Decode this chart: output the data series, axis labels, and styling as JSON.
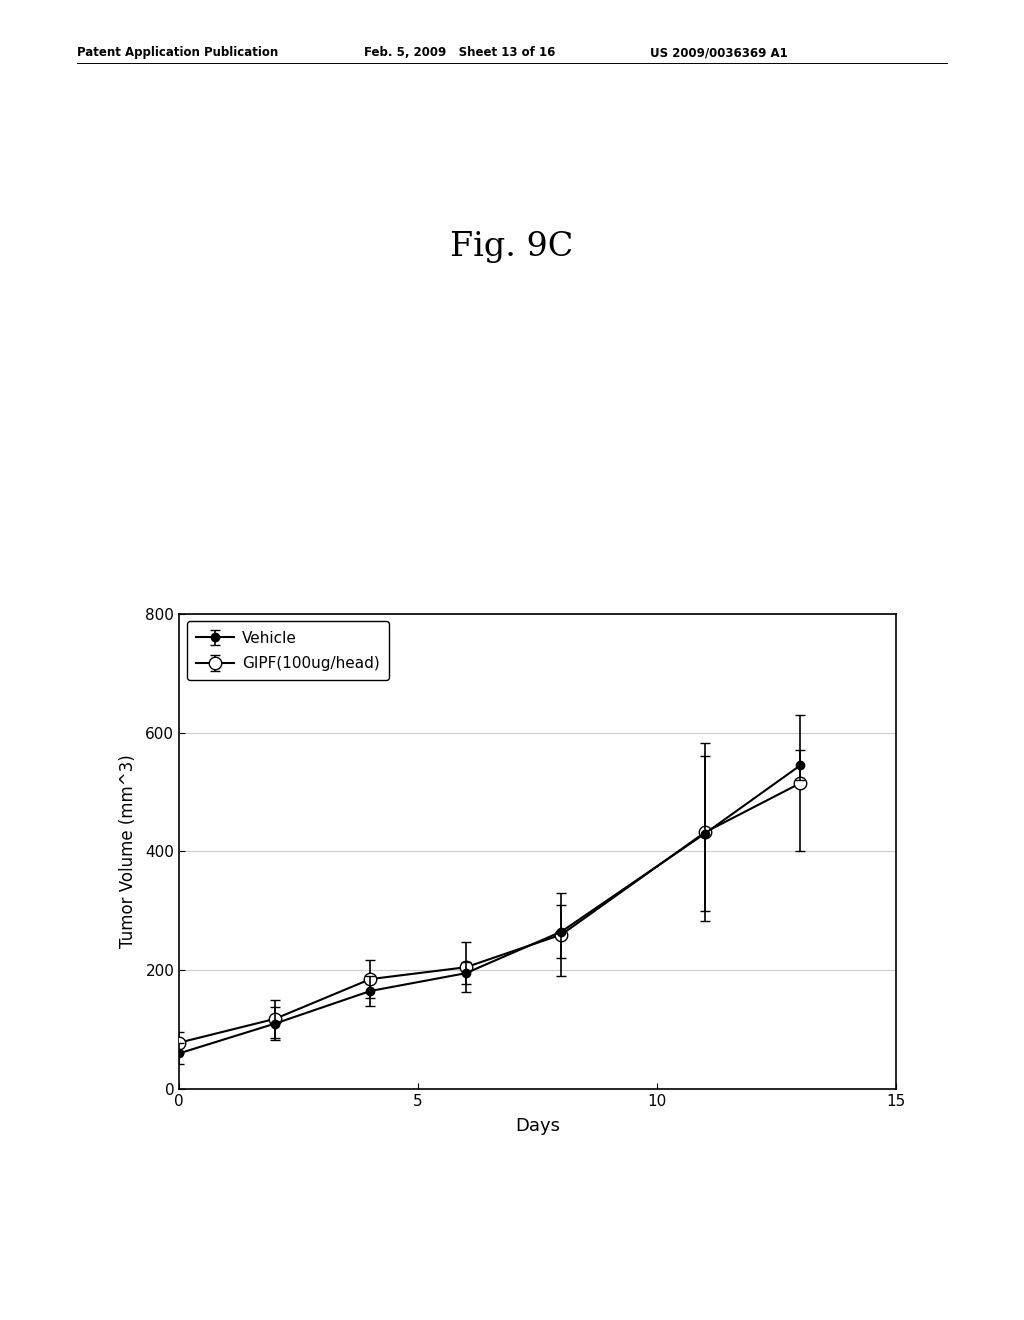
{
  "title": "Fig. 9C",
  "xlabel": "Days",
  "ylabel": "Tumor Volume (mm^3)",
  "header_left": "Patent Application Publication",
  "header_mid": "Feb. 5, 2009   Sheet 13 of 16",
  "header_right": "US 2009/0036369 A1",
  "xlim": [
    0,
    15
  ],
  "ylim": [
    0,
    800
  ],
  "xticks": [
    0,
    5,
    10,
    15
  ],
  "yticks": [
    0,
    200,
    400,
    600,
    800
  ],
  "vehicle_x": [
    0,
    2,
    4,
    6,
    8,
    11,
    13
  ],
  "vehicle_y": [
    60,
    110,
    165,
    195,
    265,
    430,
    545
  ],
  "vehicle_yerr": [
    18,
    28,
    25,
    18,
    45,
    130,
    25
  ],
  "gipf_x": [
    0,
    2,
    4,
    6,
    8,
    11,
    13
  ],
  "gipf_y": [
    78,
    118,
    185,
    205,
    260,
    432,
    515
  ],
  "gipf_yerr": [
    18,
    32,
    32,
    42,
    70,
    150,
    115
  ],
  "legend_vehicle": "Vehicle",
  "legend_gipf": "GIPF(100ug/head)",
  "background_color": "#ffffff",
  "line_color": "#000000",
  "grid_color": "#cccccc"
}
